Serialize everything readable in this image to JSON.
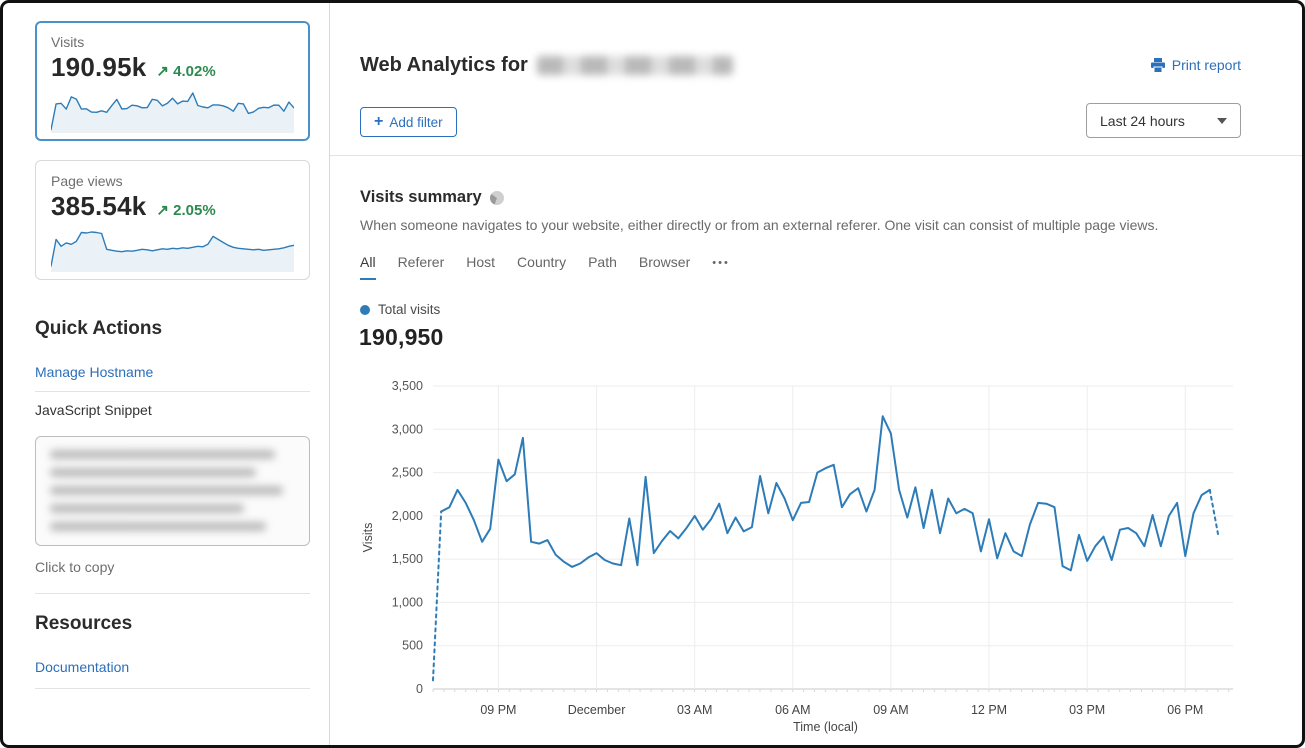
{
  "colors": {
    "accent_blue": "#2c6fbb",
    "chart_blue": "#2d7cb8",
    "positive_green": "#2d8a4e",
    "selected_card_border": "#4a90c9"
  },
  "sidebar": {
    "visits_card": {
      "label": "Visits",
      "value": "190.95k",
      "arrow": "↗",
      "change": "4.02%",
      "trend": "up"
    },
    "pageviews_card": {
      "label": "Page views",
      "value": "385.54k",
      "arrow": "↗",
      "change": "2.05%",
      "trend": "up"
    },
    "quick_actions": {
      "title": "Quick Actions",
      "manage_hostname_label": "Manage Hostname",
      "snippet_label": "JavaScript Snippet",
      "copy_hint": "Click to copy"
    },
    "resources": {
      "title": "Resources",
      "documentation_label": "Documentation"
    }
  },
  "header": {
    "title_prefix": "Web Analytics for",
    "domain_redacted": true,
    "print_label": "Print report",
    "add_filter": {
      "icon": "+",
      "label": "Add filter"
    },
    "time_range": {
      "selected": "Last 24 hours"
    }
  },
  "summary": {
    "title": "Visits summary",
    "description": "When someone navigates to your website, either directly or from an external referer. One visit can consist of multiple page views.",
    "tabs": [
      {
        "label": "All",
        "active": true
      },
      {
        "label": "Referer",
        "active": false
      },
      {
        "label": "Host",
        "active": false
      },
      {
        "label": "Country",
        "active": false
      },
      {
        "label": "Path",
        "active": false
      },
      {
        "label": "Browser",
        "active": false
      }
    ],
    "tabs_overflow": "•••",
    "legend_label": "Total visits",
    "total_value": "190,950"
  },
  "chart_data": [
    {
      "id": "visits-over-time",
      "type": "line",
      "title": "Total visits",
      "xlabel": "Time (local)",
      "ylabel": "Visits",
      "ylim": [
        0,
        3500
      ],
      "y_tick_step": 500,
      "grid": true,
      "legend_position": "top-left",
      "x_tick_labels": [
        "09 PM",
        "December",
        "03 AM",
        "06 AM",
        "09 AM",
        "12 PM",
        "03 PM",
        "06 PM"
      ],
      "x_tick_indices": [
        8,
        20,
        32,
        44,
        56,
        68,
        80,
        92
      ],
      "series": [
        {
          "name": "Total visits",
          "color": "#2d7cb8",
          "dashed_head_points": 2,
          "dashed_tail_points": 2,
          "values": [
            100,
            2050,
            2100,
            2300,
            2150,
            1950,
            1700,
            1850,
            2650,
            2400,
            2480,
            2900,
            1700,
            1680,
            1720,
            1550,
            1470,
            1410,
            1450,
            1520,
            1570,
            1490,
            1450,
            1430,
            1970,
            1430,
            2450,
            1570,
            1710,
            1825,
            1740,
            1860,
            2000,
            1840,
            1960,
            2140,
            1800,
            1980,
            1820,
            1870,
            2460,
            2030,
            2380,
            2200,
            1950,
            2150,
            2160,
            2500,
            2550,
            2590,
            2100,
            2250,
            2320,
            2050,
            2300,
            3150,
            2950,
            2300,
            1980,
            2330,
            1860,
            2300,
            1800,
            2200,
            2030,
            2080,
            2030,
            1590,
            1960,
            1510,
            1800,
            1590,
            1535,
            1900,
            2150,
            2140,
            2100,
            1420,
            1370,
            1780,
            1480,
            1650,
            1760,
            1490,
            1840,
            1860,
            1800,
            1650,
            2010,
            1650,
            2000,
            2150,
            1535,
            2030,
            2240,
            2300,
            1790
          ]
        }
      ]
    },
    {
      "id": "visits-sparkline",
      "type": "line",
      "color": "#2d7cb8",
      "values": [
        100,
        2100,
        2150,
        1700,
        2650,
        2480,
        1700,
        1720,
        1470,
        1450,
        1570,
        1450,
        1970,
        2450,
        1710,
        1740,
        2000,
        1960,
        1800,
        1820,
        2460,
        2380,
        1950,
        2160,
        2550,
        2100,
        2320,
        2300,
        2950,
        1980,
        1860,
        1800,
        2030,
        2030,
        1960,
        1800,
        1535,
        2150,
        2100,
        1370,
        1480,
        1760,
        1840,
        1800,
        2010,
        2000,
        1535,
        2240,
        1790
      ]
    },
    {
      "id": "pageviews-sparkline",
      "type": "line",
      "color": "#2d7cb8",
      "values": [
        8,
        62,
        48,
        55,
        52,
        58,
        76,
        75,
        77,
        76,
        74,
        42,
        40,
        38,
        37,
        39,
        38,
        40,
        42,
        41,
        39,
        41,
        43,
        42,
        44,
        43,
        45,
        44,
        46,
        48,
        47,
        52,
        68,
        62,
        56,
        50,
        46,
        44,
        43,
        42,
        41,
        42,
        40,
        41,
        42,
        43,
        45,
        48,
        50
      ]
    }
  ]
}
